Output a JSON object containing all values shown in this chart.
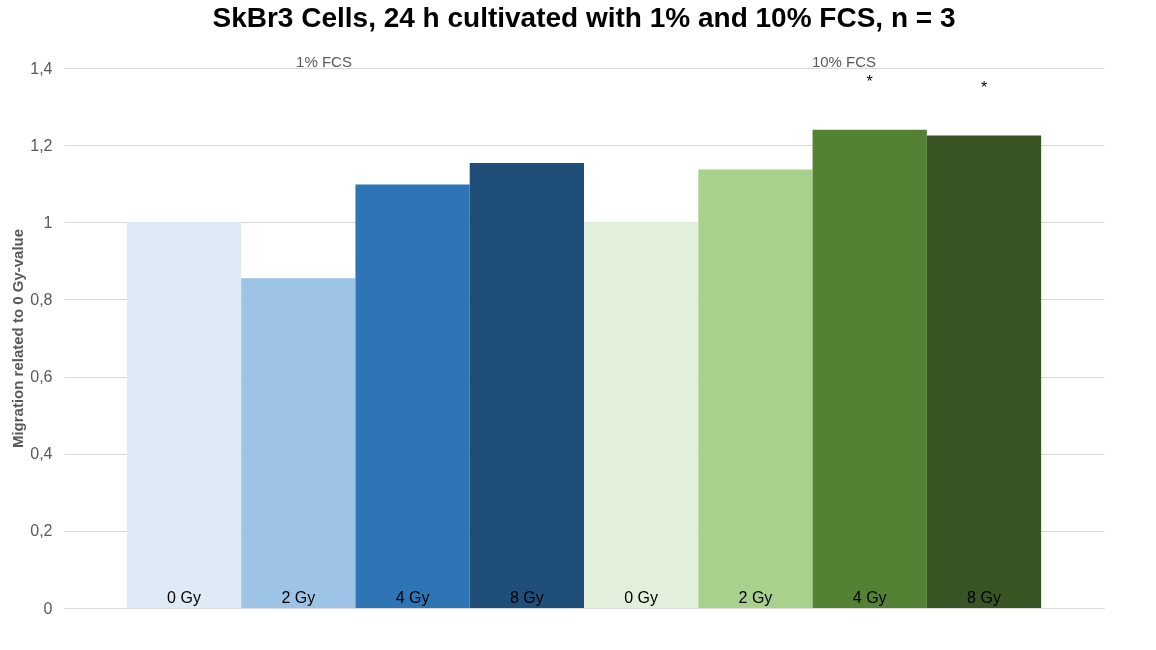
{
  "chart_data": {
    "type": "bar",
    "title": "SkBr3 Cells, 24 h cultivated with 1% and 10% FCS, n = 3",
    "ylabel": "Migration related to 0 Gy-value",
    "categories": [
      "0 Gy",
      "2 Gy",
      "4 Gy",
      "8 Gy",
      "0 Gy",
      "2 Gy",
      "4 Gy",
      "8 Gy"
    ],
    "values": [
      1.0,
      0.855,
      1.098,
      1.154,
      1.0,
      1.137,
      1.24,
      1.225
    ],
    "colors": [
      "#deebf7",
      "#9dc3e6",
      "#2e75b6",
      "#1f4e79",
      "#e2efda",
      "#a9d18e",
      "#548235",
      "#375623"
    ],
    "ylim": [
      0,
      1.4
    ],
    "yticks": [
      {
        "value": 0,
        "label": "0"
      },
      {
        "value": 0.2,
        "label": "0,2"
      },
      {
        "value": 0.4,
        "label": "0,4"
      },
      {
        "value": 0.6,
        "label": "0,6"
      },
      {
        "value": 0.8,
        "label": "0,8"
      },
      {
        "value": 1,
        "label": "1"
      },
      {
        "value": 1.2,
        "label": "1,2"
      },
      {
        "value": 1.4,
        "label": "1,4"
      }
    ],
    "grid": "y",
    "value_labels": [
      null,
      null,
      null,
      null,
      null,
      null,
      "*",
      "*"
    ],
    "annotations": [
      "1% FCS",
      "10% FCS"
    ]
  }
}
